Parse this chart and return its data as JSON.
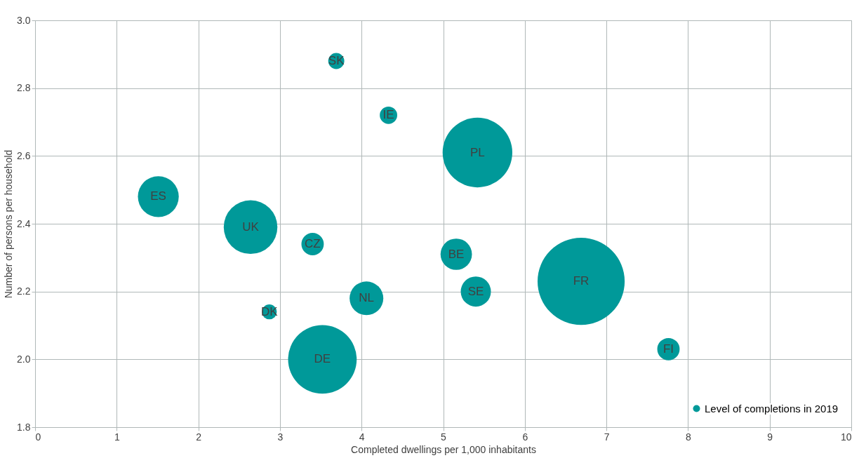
{
  "chart_data": {
    "type": "bubble",
    "xlabel": "Completed dwellings per 1,000 inhabitants",
    "ylabel": "Number of persons per household",
    "x": [
      3.69,
      4.33,
      5.42,
      1.51,
      2.64,
      3.4,
      5.16,
      6.69,
      5.4,
      4.06,
      2.87,
      3.52,
      7.76
    ],
    "series": [
      {
        "name": "Level of completions in 2019",
        "color": "#009999",
        "values": [
          2.88,
          2.72,
          2.61,
          2.48,
          2.39,
          2.34,
          2.31,
          2.23,
          2.2,
          2.18,
          2.14,
          2.0,
          2.03
        ],
        "sizes": [
          0.034,
          0.04,
          0.64,
          0.22,
          0.38,
          0.066,
          0.13,
          1,
          0.12,
          0.15,
          0.029,
          0.62,
          0.066
        ]
      }
    ],
    "annotations": [
      {
        "text": "SK",
        "x": 3.69,
        "y": 2.88
      },
      {
        "text": "IE",
        "x": 4.33,
        "y": 2.72
      },
      {
        "text": "PL",
        "x": 5.42,
        "y": 2.61
      },
      {
        "text": "ES",
        "x": 1.51,
        "y": 2.48
      },
      {
        "text": "UK",
        "x": 2.64,
        "y": 2.39
      },
      {
        "text": "CZ",
        "x": 3.4,
        "y": 2.34
      },
      {
        "text": "BE",
        "x": 5.16,
        "y": 2.31
      },
      {
        "text": "FR",
        "x": 6.69,
        "y": 2.23
      },
      {
        "text": "SE",
        "x": 5.4,
        "y": 2.2
      },
      {
        "text": "NL",
        "x": 4.06,
        "y": 2.18
      },
      {
        "text": "DK",
        "x": 2.87,
        "y": 2.14
      },
      {
        "text": "DE",
        "x": 3.52,
        "y": 2.0
      },
      {
        "text": "FI",
        "x": 7.76,
        "y": 2.03
      }
    ],
    "xlim": [
      0,
      10
    ],
    "xticks": [
      0,
      1,
      2,
      3,
      4,
      5,
      6,
      7,
      8,
      9,
      10
    ],
    "ylim": [
      1.8,
      3.0
    ],
    "yticks": [
      {
        "value": 1.8,
        "label": "1.8"
      },
      {
        "value": 2.0,
        "label": "2.0"
      },
      {
        "value": 2.2,
        "label": "2.2"
      },
      {
        "value": 2.4,
        "label": "2.4"
      },
      {
        "value": 2.6,
        "label": "2.6"
      },
      {
        "value": 2.8,
        "label": "2.8"
      },
      {
        "value": 3.0,
        "label": "3.0"
      }
    ],
    "grid": true,
    "legend": "bottom right"
  }
}
